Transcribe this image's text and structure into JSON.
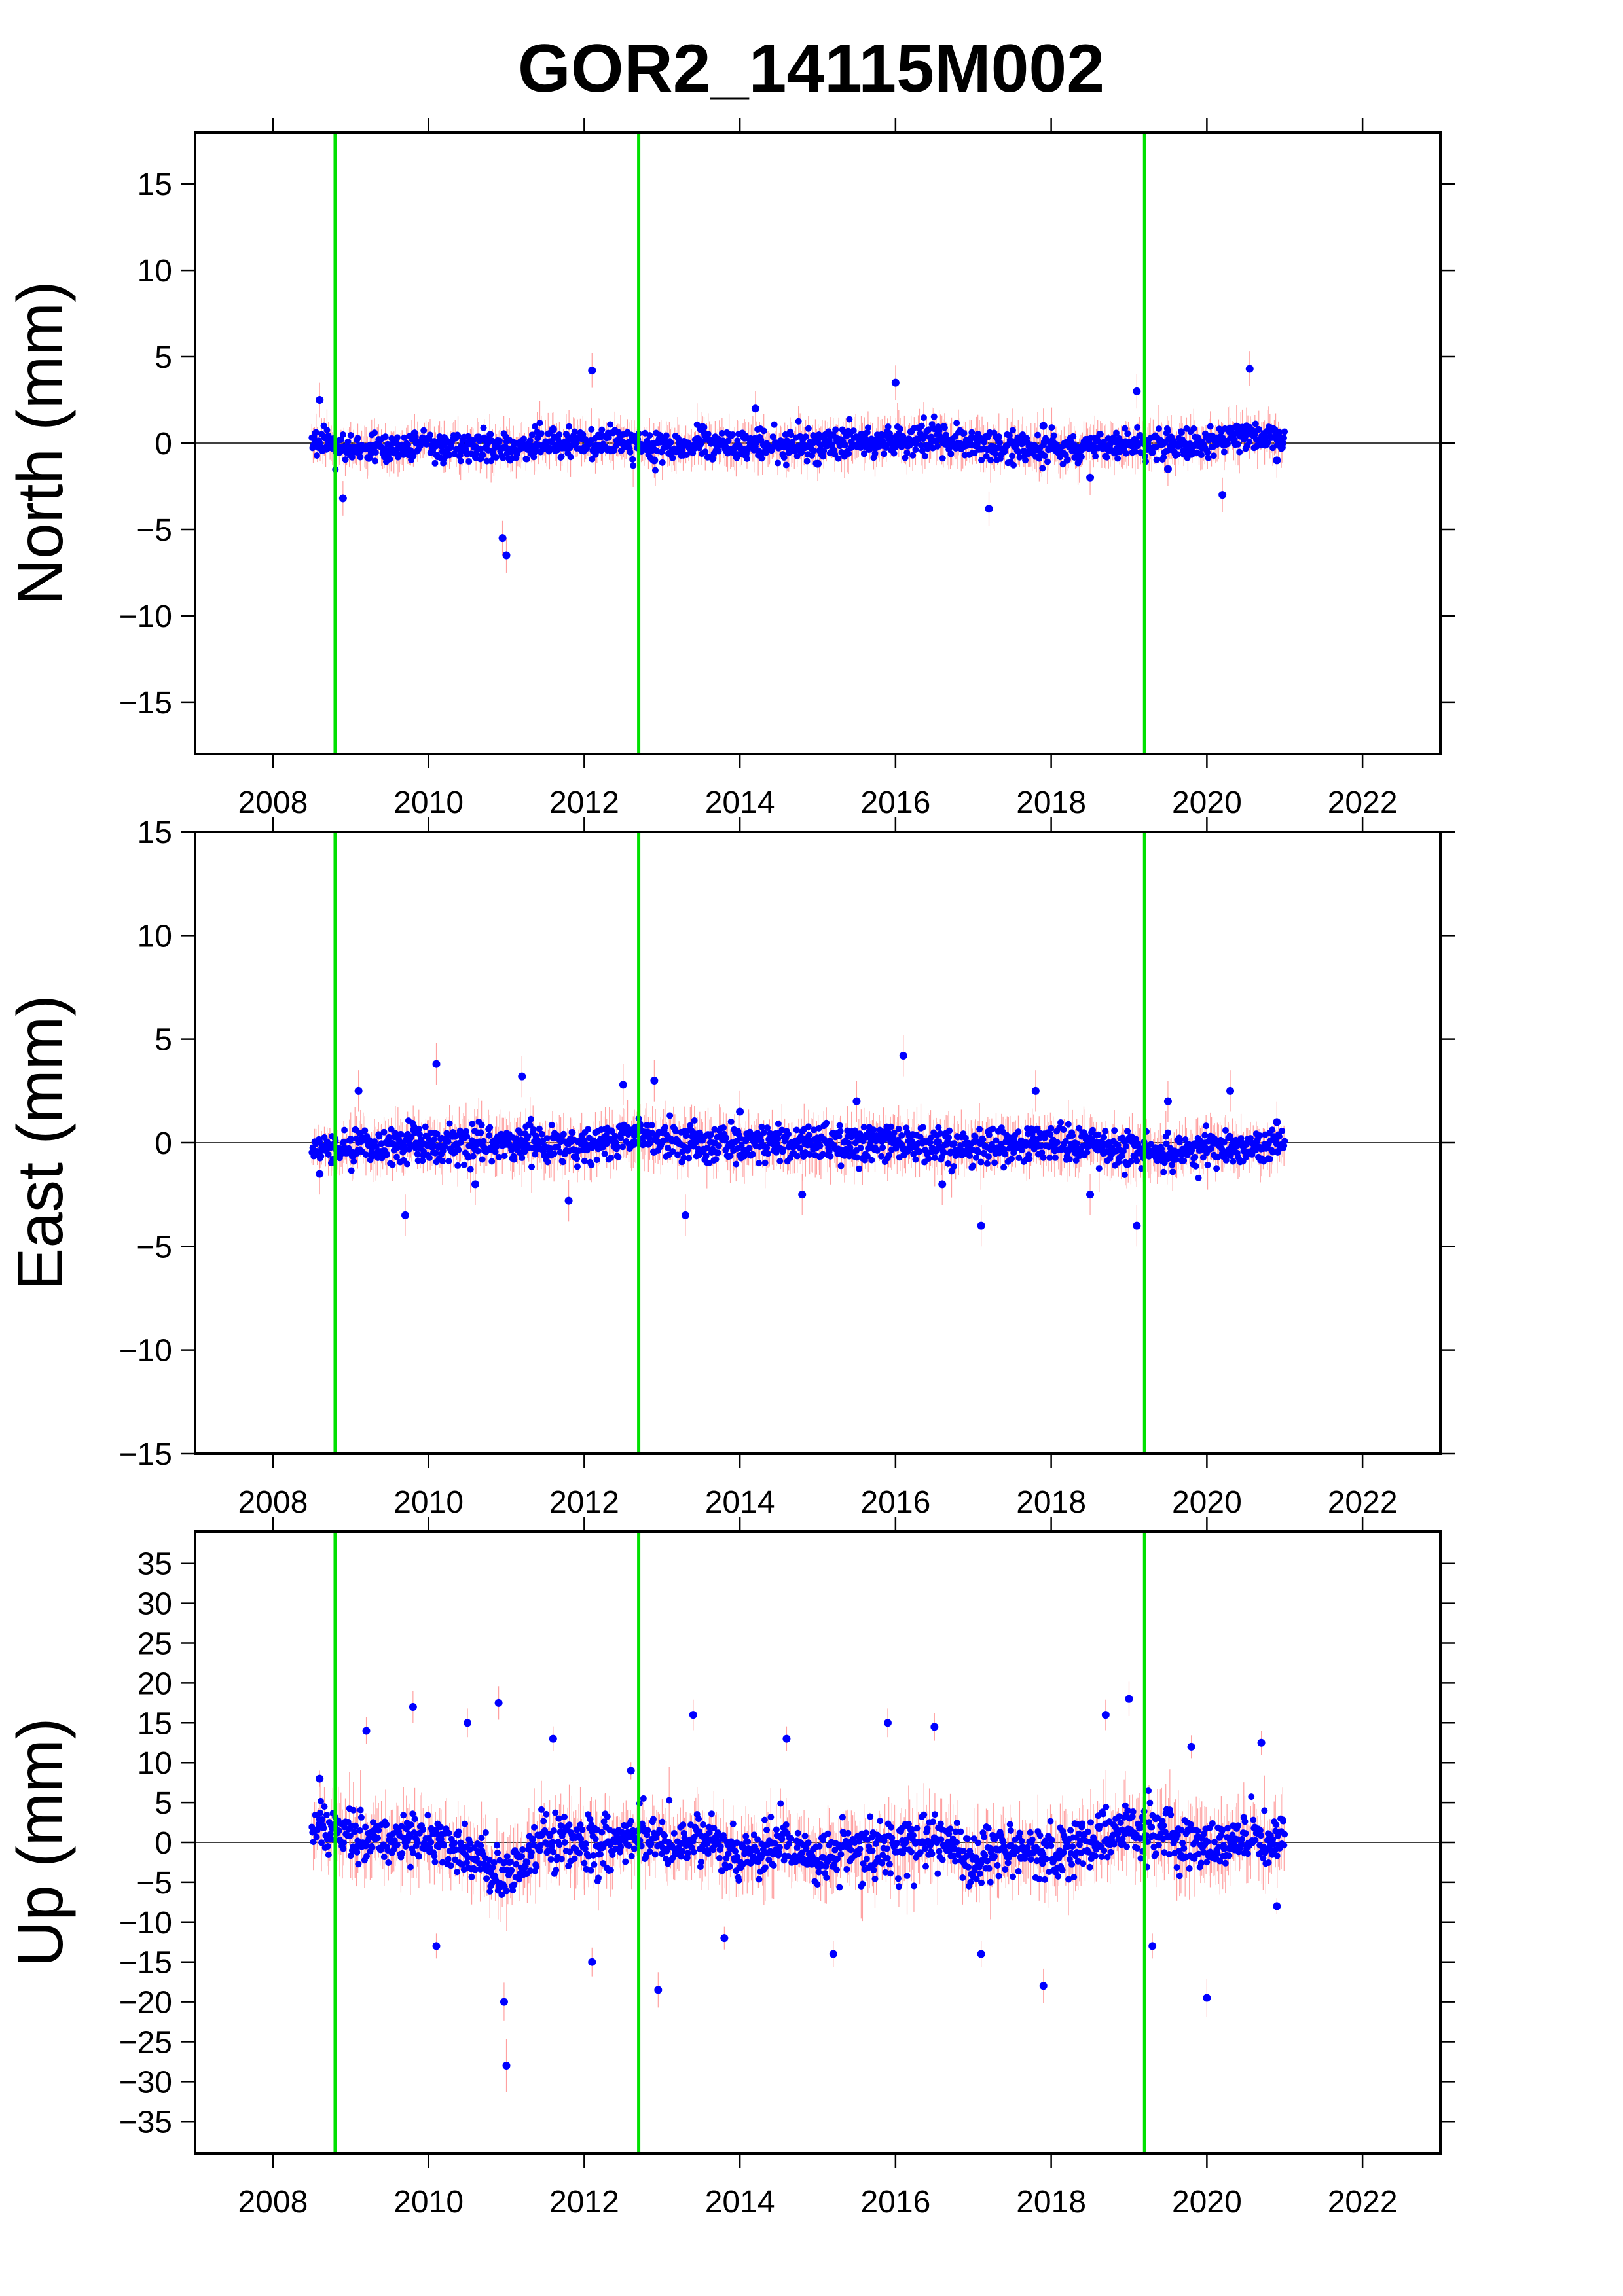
{
  "title": "GOR2_14115M002",
  "colors": {
    "point": "#0000ff",
    "errorbar": "#ff8080",
    "offset_line": "#00e000",
    "zero_line": "#000000",
    "frame": "#000000"
  },
  "chart_data": [
    {
      "type": "scatter",
      "panel": "north",
      "title": "",
      "ylabel": "North (mm)",
      "xlabel": "",
      "xlim": [
        2007.0,
        2023.0
      ],
      "ylim": [
        -18,
        18
      ],
      "xticks": [
        "2008",
        "2010",
        "2012",
        "2014",
        "2016",
        "2018",
        "2020",
        "2022"
      ],
      "yticks": [
        "15",
        "10",
        "5",
        "0",
        "−5",
        "−10",
        "−15"
      ],
      "grid": false,
      "legend": "none",
      "offsets_year": [
        2008.8,
        2012.7,
        2019.2
      ],
      "series": [
        {
          "x": [
            2008.6,
            2008.9,
            2009.5,
            2010.2,
            2010.95,
            2011.0,
            2011.6,
            2012.1,
            2012.9,
            2013.5,
            2014.2,
            2015.0,
            2015.6,
            2016.0,
            2016.6,
            2017.2,
            2017.9,
            2018.5,
            2019.1,
            2019.5,
            2020.2,
            2020.55,
            2020.9
          ],
          "y": [
            2.5,
            -3.2,
            -0.5,
            0.3,
            -5.5,
            -6.5,
            0.8,
            4.2,
            -1.0,
            0.8,
            2.0,
            -1.2,
            0.5,
            3.5,
            0.2,
            -3.8,
            1.0,
            -2.0,
            3.0,
            -1.5,
            -3.0,
            4.3,
            -1.0
          ],
          "envelope": {
            "x": [
              2008.5,
              2009.0,
              2010.0,
              2011.0,
              2012.0,
              2012.7,
              2013.5,
              2014.5,
              2015.5,
              2016.5,
              2017.5,
              2018.5,
              2019.2,
              2020.0,
              2020.6,
              2021.0
            ],
            "upper": [
              2.2,
              1.8,
              1.8,
              2.0,
              2.3,
              2.0,
              2.0,
              2.2,
              2.3,
              2.6,
              2.0,
              2.0,
              2.3,
              2.0,
              3.0,
              2.2
            ],
            "lower": [
              -2.0,
              -2.4,
              -2.2,
              -2.4,
              -1.9,
              -2.2,
              -2.4,
              -2.3,
              -2.3,
              -2.2,
              -2.6,
              -2.4,
              -2.4,
              -2.2,
              -1.8,
              -1.8
            ]
          }
        }
      ]
    },
    {
      "type": "scatter",
      "panel": "east",
      "title": "",
      "ylabel": "East (mm)",
      "xlabel": "",
      "xlim": [
        2007.0,
        2023.0
      ],
      "ylim": [
        -15,
        15
      ],
      "xticks": [
        "2008",
        "2010",
        "2012",
        "2014",
        "2016",
        "2018",
        "2020",
        "2022"
      ],
      "yticks": [
        "15",
        "10",
        "5",
        "0",
        "−5",
        "−10",
        "−15"
      ],
      "grid": false,
      "legend": "none",
      "offsets_year": [
        2008.8,
        2012.7,
        2019.2
      ],
      "series": [
        {
          "x": [
            2008.6,
            2009.1,
            2009.7,
            2010.1,
            2010.6,
            2011.2,
            2011.8,
            2012.5,
            2012.9,
            2013.3,
            2014.0,
            2014.8,
            2015.5,
            2016.1,
            2016.6,
            2017.1,
            2017.8,
            2018.5,
            2019.1,
            2019.5,
            2020.3,
            2020.9
          ],
          "y": [
            -1.5,
            2.5,
            -3.5,
            3.8,
            -2.0,
            3.2,
            -2.8,
            2.8,
            3.0,
            -3.5,
            1.5,
            -2.5,
            2.0,
            4.2,
            -2.0,
            -4.0,
            2.5,
            -2.5,
            -4.0,
            2.0,
            2.5,
            1.0
          ],
          "envelope": {
            "x": [
              2008.5,
              2009.0,
              2010.0,
              2011.0,
              2012.0,
              2012.7,
              2013.5,
              2014.5,
              2015.5,
              2016.5,
              2017.5,
              2018.5,
              2019.2,
              2020.0,
              2020.6,
              2021.0
            ],
            "upper": [
              1.0,
              2.0,
              2.2,
              2.5,
              2.0,
              2.8,
              2.3,
              2.2,
              2.3,
              2.2,
              2.0,
              2.0,
              1.8,
              1.8,
              1.8,
              1.8
            ],
            "lower": [
              -1.8,
              -2.5,
              -2.2,
              -2.4,
              -2.2,
              -1.8,
              -2.4,
              -2.2,
              -2.3,
              -2.4,
              -2.4,
              -2.2,
              -2.8,
              -2.4,
              -2.3,
              -1.8
            ]
          }
        }
      ]
    },
    {
      "type": "scatter",
      "panel": "up",
      "title": "",
      "ylabel": "Up (mm)",
      "xlabel": "",
      "xlim": [
        2007.0,
        2023.0
      ],
      "ylim": [
        -39,
        39
      ],
      "xticks": [
        "2008",
        "2010",
        "2012",
        "2014",
        "2016",
        "2018",
        "2020",
        "2022"
      ],
      "yticks": [
        "35",
        "30",
        "25",
        "20",
        "15",
        "10",
        "5",
        "0",
        "−5",
        "−10",
        "−15",
        "−20",
        "−25",
        "−30",
        "−35"
      ],
      "grid": false,
      "legend": "none",
      "offsets_year": [
        2008.8,
        2012.7,
        2019.2
      ],
      "series": [
        {
          "x": [
            2008.6,
            2009.2,
            2009.8,
            2010.1,
            2010.5,
            2010.9,
            2010.97,
            2011.0,
            2011.6,
            2012.1,
            2012.6,
            2012.95,
            2013.4,
            2013.8,
            2014.6,
            2015.2,
            2015.9,
            2016.5,
            2017.1,
            2017.9,
            2018.7,
            2019.0,
            2019.3,
            2019.8,
            2020.0,
            2020.7,
            2020.9
          ],
          "y": [
            8.0,
            14.0,
            17.0,
            -13.0,
            15.0,
            17.5,
            -20.0,
            -28.0,
            13.0,
            -15.0,
            9.0,
            -18.5,
            16.0,
            -12.0,
            13.0,
            -14.0,
            15.0,
            14.5,
            -14.0,
            -18.0,
            16.0,
            18.0,
            -13.0,
            12.0,
            -19.5,
            12.5,
            -8.0
          ],
          "envelope": {
            "x": [
              2008.5,
              2009.0,
              2009.5,
              2010.0,
              2010.5,
              2011.0,
              2011.5,
              2012.0,
              2012.7,
              2013.5,
              2014.0,
              2014.5,
              2015.0,
              2015.5,
              2016.0,
              2016.5,
              2017.0,
              2017.5,
              2018.0,
              2018.5,
              2019.0,
              2019.5,
              2020.0,
              2020.5,
              2021.0
            ],
            "upper": [
              8.5,
              9.5,
              8.0,
              8.0,
              6.0,
              4.0,
              9.0,
              9.0,
              8.0,
              8.0,
              6.0,
              8.0,
              6.0,
              7.0,
              8.0,
              8.5,
              6.0,
              7.0,
              6.0,
              9.0,
              10.0,
              9.0,
              7.0,
              9.0,
              9.0
            ],
            "lower": [
              -4.0,
              -8.0,
              -7.0,
              -7.0,
              -9.0,
              -13.0,
              -8.0,
              -9.0,
              -7.0,
              -8.0,
              -9.0,
              -7.0,
              -10.0,
              -9.0,
              -9.0,
              -7.0,
              -11.0,
              -8.0,
              -10.0,
              -8.0,
              -6.0,
              -8.0,
              -10.0,
              -7.0,
              -7.5
            ]
          }
        }
      ]
    }
  ]
}
